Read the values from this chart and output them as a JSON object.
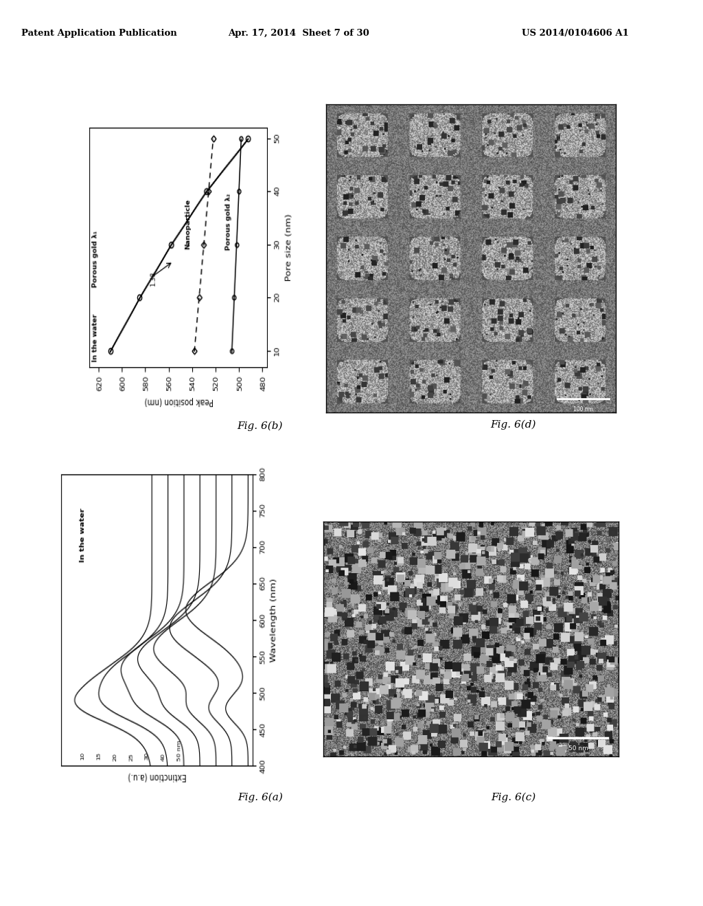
{
  "header_left": "Patent Application Publication",
  "header_mid": "Apr. 17, 2014  Sheet 7 of 30",
  "header_right": "US 2014/0104606 A1",
  "fig_6b_caption": "Fig. 6(b)",
  "fig_6d_caption": "Fig. 6(d)",
  "fig_6a_caption": "Fig. 6(a)",
  "fig_6c_caption": "Fig. 6(c)",
  "background_color": "#ffffff",
  "fig6b_x_pore": [
    10,
    20,
    30,
    40,
    50
  ],
  "fig6b_pg1_y": [
    610,
    585,
    558,
    528,
    492
  ],
  "fig6b_nano_y": [
    538,
    534,
    530,
    526,
    522
  ],
  "fig6b_pg2_y": [
    506,
    504,
    502,
    500,
    498
  ],
  "fig6a_pore_labels": [
    "50 nm",
    "40",
    "30",
    "25",
    "20",
    "15",
    "10"
  ],
  "fig6a_peaks": [
    615,
    590,
    562,
    548,
    535,
    518,
    505
  ],
  "fig6a_offsets": [
    0.0,
    0.18,
    0.36,
    0.54,
    0.72,
    0.9,
    1.08
  ]
}
